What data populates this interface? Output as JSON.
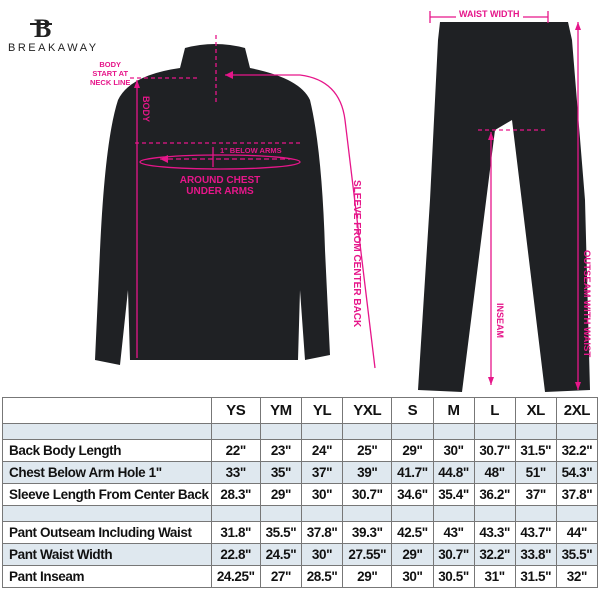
{
  "brand": {
    "name": "BREAKAWAY",
    "logo_letter": "B"
  },
  "accent_color": "#e6168a",
  "annotations": {
    "body_start": [
      "BODY",
      "START AT",
      "NECK LINE"
    ],
    "body": "BODY",
    "below_arms": "1\" BELOW ARMS",
    "around_chest": [
      "AROUND CHEST",
      "UNDER ARMS"
    ],
    "sleeve": "SLEEVE FROM CENTER BACK",
    "waist_width": "WAIST WIDTH",
    "inseam": "INSEAM",
    "outseam": "OUTSEAM WITH WAIST"
  },
  "size_table": {
    "columns": [
      "YS",
      "YM",
      "YL",
      "YXL",
      "S",
      "M",
      "L",
      "XL",
      "2XL"
    ],
    "rows": [
      {
        "label": "Back Body Length",
        "values": [
          "22\"",
          "23\"",
          "24\"",
          "25\"",
          "29\"",
          "30\"",
          "30.7\"",
          "31.5\"",
          "32.2\""
        ]
      },
      {
        "label": "Chest Below Arm Hole 1\"",
        "values": [
          "33\"",
          "35\"",
          "37\"",
          "39\"",
          "41.7\"",
          "44.8\"",
          "48\"",
          "51\"",
          "54.3\""
        ]
      },
      {
        "label": "Sleeve Length From Center Back",
        "values": [
          "28.3\"",
          "29\"",
          "30\"",
          "30.7\"",
          "34.6\"",
          "35.4\"",
          "36.2\"",
          "37\"",
          "37.8\""
        ]
      },
      {
        "label": "Pant Outseam Including Waist",
        "values": [
          "31.8\"",
          "35.5\"",
          "37.8\"",
          "39.3\"",
          "42.5\"",
          "43\"",
          "43.3\"",
          "43.7\"",
          "44\""
        ]
      },
      {
        "label": "Pant Waist Width",
        "values": [
          "22.8\"",
          "24.5\"",
          "30\"",
          "27.55\"",
          "29\"",
          "30.7\"",
          "32.2\"",
          "33.8\"",
          "35.5\""
        ]
      },
      {
        "label": "Pant Inseam",
        "values": [
          "24.25\"",
          "27\"",
          "28.5\"",
          "29\"",
          "30\"",
          "30.5\"",
          "31\"",
          "31.5\"",
          "32\""
        ]
      }
    ]
  }
}
